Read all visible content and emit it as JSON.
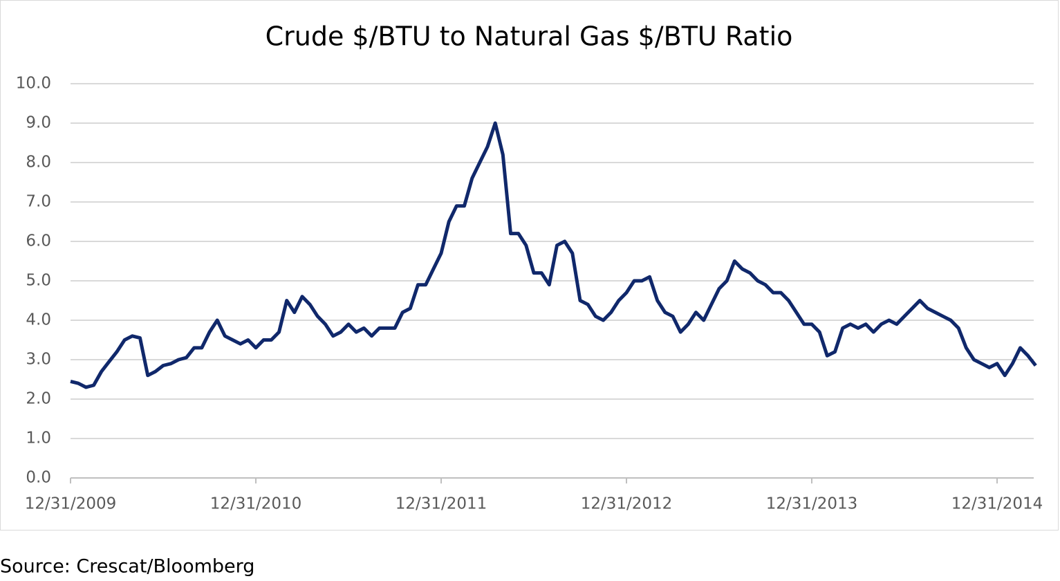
{
  "chart_data": {
    "type": "line",
    "title": "Crude $/BTU to Natural Gas $/BTU Ratio",
    "source": "Source: Crescat/Bloomberg",
    "categories": [
      "12/31/2009",
      null,
      null,
      null,
      null,
      null,
      null,
      null,
      null,
      null,
      null,
      null,
      null,
      null,
      null,
      null,
      null,
      null,
      null,
      null,
      null,
      null,
      null,
      null,
      "12/31/2010",
      null,
      null,
      null,
      null,
      null,
      null,
      null,
      null,
      null,
      null,
      null,
      null,
      null,
      null,
      null,
      null,
      null,
      null,
      null,
      null,
      null,
      null,
      null,
      "12/31/2011",
      null,
      null,
      null,
      null,
      null,
      null,
      null,
      null,
      null,
      null,
      null,
      null,
      null,
      null,
      null,
      null,
      null,
      null,
      null,
      null,
      null,
      null,
      null,
      "12/31/2012",
      null,
      null,
      null,
      null,
      null,
      null,
      null,
      null,
      null,
      null,
      null,
      null,
      null,
      null,
      null,
      null,
      null,
      null,
      null,
      null,
      null,
      null,
      null,
      "12/31/2013",
      null,
      null,
      null,
      null,
      null,
      null,
      null,
      null,
      null,
      null,
      null,
      null,
      null,
      null,
      null,
      null,
      null,
      null,
      null,
      null,
      null,
      null,
      null,
      "12/31/2014",
      null,
      null,
      null,
      null,
      null
    ],
    "series": [
      {
        "name": "Ratio",
        "color": "#10286b",
        "values": [
          2.45,
          2.4,
          2.3,
          2.35,
          2.7,
          2.95,
          3.2,
          3.5,
          3.6,
          3.55,
          2.6,
          2.7,
          2.85,
          2.9,
          3.0,
          3.05,
          3.3,
          3.3,
          3.7,
          4.0,
          3.6,
          3.5,
          3.4,
          3.5,
          3.3,
          3.5,
          3.5,
          3.7,
          4.5,
          4.2,
          4.6,
          4.4,
          4.1,
          3.9,
          3.6,
          3.7,
          3.9,
          3.7,
          3.8,
          3.6,
          3.8,
          3.8,
          3.8,
          4.2,
          4.3,
          4.9,
          4.9,
          5.3,
          5.7,
          6.5,
          6.9,
          6.9,
          7.6,
          8.0,
          8.4,
          9.0,
          8.2,
          6.2,
          6.2,
          5.9,
          5.2,
          5.2,
          4.9,
          5.9,
          6.0,
          5.7,
          4.5,
          4.4,
          4.1,
          4.0,
          4.2,
          4.5,
          4.7,
          5.0,
          5.0,
          5.1,
          4.5,
          4.2,
          4.1,
          3.7,
          3.9,
          4.2,
          4.0,
          4.4,
          4.8,
          5.0,
          5.5,
          5.3,
          5.2,
          5.0,
          4.9,
          4.7,
          4.7,
          4.5,
          4.2,
          3.9,
          3.9,
          3.7,
          3.1,
          3.2,
          3.8,
          3.9,
          3.8,
          3.9,
          3.7,
          3.9,
          4.0,
          3.9,
          4.1,
          4.3,
          4.5,
          4.3,
          4.2,
          4.1,
          4.0,
          3.8,
          3.3,
          3.0,
          2.9,
          2.8,
          2.9,
          2.6,
          2.9,
          3.3,
          3.1,
          2.85
        ]
      }
    ],
    "ylim": [
      0,
      10
    ],
    "yticks": [
      {
        "value": 0,
        "label": "0.0"
      },
      {
        "value": 1,
        "label": "1.0"
      },
      {
        "value": 2,
        "label": "2.0"
      },
      {
        "value": 3,
        "label": "3.0"
      },
      {
        "value": 4,
        "label": "4.0"
      },
      {
        "value": 5,
        "label": "5.0"
      },
      {
        "value": 6,
        "label": "6.0"
      },
      {
        "value": 7,
        "label": "7.0"
      },
      {
        "value": 8,
        "label": "8.0"
      },
      {
        "value": 9,
        "label": "9.0"
      },
      {
        "value": 10,
        "label": "10.0"
      }
    ],
    "grid": true
  }
}
